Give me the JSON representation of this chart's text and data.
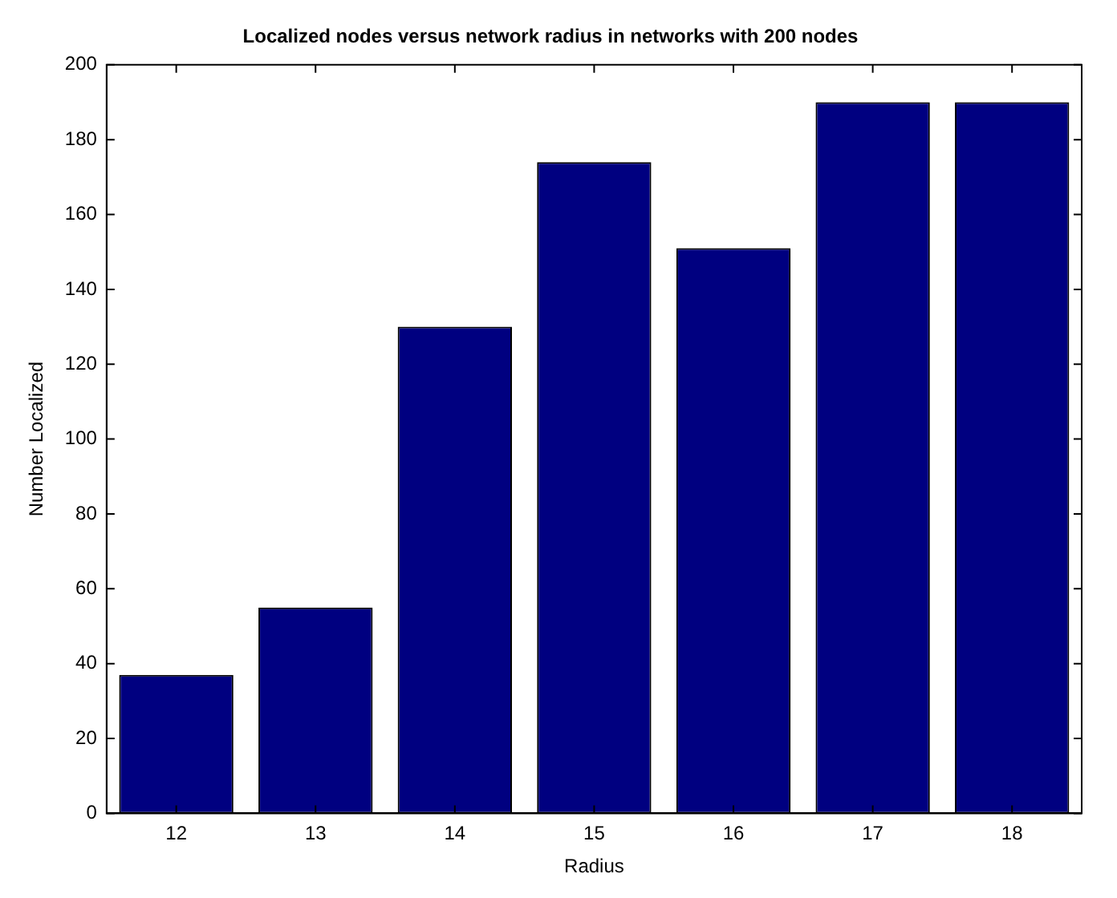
{
  "chart_data": {
    "type": "bar",
    "title": "Localized nodes versus network radius in networks with 200 nodes",
    "xlabel": "Radius",
    "ylabel": "Number Localized",
    "categories": [
      "12",
      "13",
      "14",
      "15",
      "16",
      "17",
      "18"
    ],
    "values": [
      37,
      55,
      130,
      174,
      151,
      190,
      190
    ],
    "color": "#000080",
    "ylim": [
      0,
      200
    ],
    "yticks": [
      0,
      20,
      40,
      60,
      80,
      100,
      120,
      140,
      160,
      180,
      200
    ],
    "legend": false
  }
}
